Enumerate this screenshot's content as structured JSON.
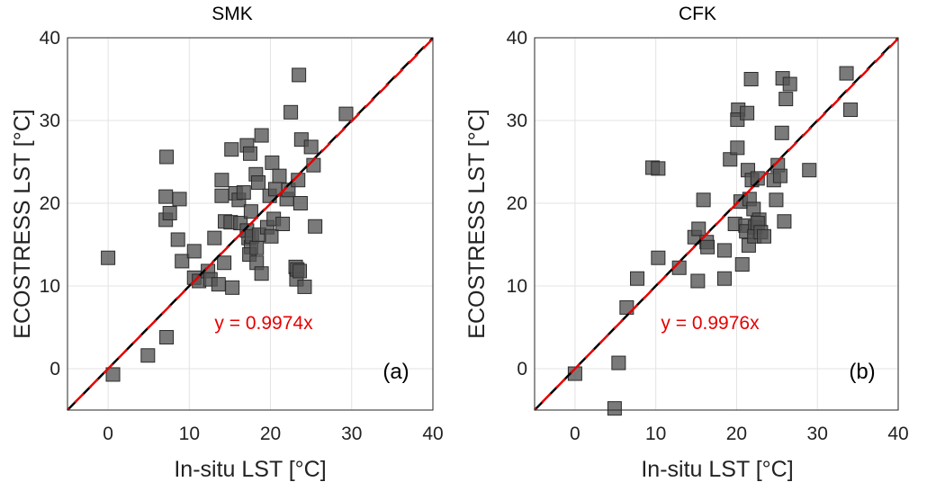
{
  "chart_data": [
    {
      "type": "scatter",
      "title": "SMK",
      "xlabel": "In-situ LST [°C]",
      "ylabel": "ECOSTRESS LST [°C]",
      "xlim": [
        -5,
        40
      ],
      "ylim": [
        -5,
        40
      ],
      "xticks": [
        0,
        10,
        20,
        30,
        40
      ],
      "yticks": [
        0,
        10,
        20,
        30,
        40
      ],
      "grid": true,
      "annotation": "y = 0.9974x",
      "panel_label": "(a)",
      "fit_slope": 0.9974,
      "colors": {
        "marker": "#555555",
        "one_to_one": "#000000",
        "fit": "#e60000"
      },
      "points": [
        [
          0,
          13.4
        ],
        [
          0.6,
          -0.7
        ],
        [
          4.9,
          1.6
        ],
        [
          7.2,
          3.8
        ],
        [
          7.2,
          25.6
        ],
        [
          7.1,
          20.8
        ],
        [
          7.1,
          18.0
        ],
        [
          7.6,
          18.8
        ],
        [
          8.8,
          20.5
        ],
        [
          8.6,
          15.6
        ],
        [
          9.1,
          13.0
        ],
        [
          10.6,
          14.2
        ],
        [
          10.6,
          11.0
        ],
        [
          11.2,
          10.6
        ],
        [
          12.3,
          11.8
        ],
        [
          12.6,
          10.8
        ],
        [
          13.1,
          15.8
        ],
        [
          13.6,
          10.2
        ],
        [
          14.0,
          22.8
        ],
        [
          14.0,
          20.9
        ],
        [
          14.4,
          17.8
        ],
        [
          14.3,
          12.8
        ],
        [
          15.2,
          26.5
        ],
        [
          15.1,
          17.7
        ],
        [
          15.3,
          9.8
        ],
        [
          15.7,
          21.2
        ],
        [
          16.1,
          20.4
        ],
        [
          16.3,
          17.6
        ],
        [
          16.7,
          21.3
        ],
        [
          17.1,
          27.0
        ],
        [
          17.5,
          26.0
        ],
        [
          17.3,
          15.8
        ],
        [
          17.6,
          14.7
        ],
        [
          17.4,
          13.8
        ],
        [
          17.1,
          16.7
        ],
        [
          17.7,
          16.0
        ],
        [
          17.6,
          19.0
        ],
        [
          18.2,
          23.5
        ],
        [
          18.5,
          22.5
        ],
        [
          18.3,
          14.6
        ],
        [
          18.9,
          28.2
        ],
        [
          18.6,
          16.2
        ],
        [
          18.3,
          12.8
        ],
        [
          18.9,
          11.5
        ],
        [
          19.6,
          17.1
        ],
        [
          19.9,
          20.9
        ],
        [
          20.1,
          16.0
        ],
        [
          20.4,
          18.1
        ],
        [
          20.2,
          24.9
        ],
        [
          20.6,
          21.7
        ],
        [
          21.1,
          23.3
        ],
        [
          21.5,
          17.5
        ],
        [
          22.0,
          20.5
        ],
        [
          22.2,
          21.6
        ],
        [
          22.5,
          31.0
        ],
        [
          23.1,
          12.3
        ],
        [
          23.2,
          10.8
        ],
        [
          23.5,
          35.5
        ],
        [
          23.3,
          12.0
        ],
        [
          23.4,
          22.8
        ],
        [
          23.8,
          27.7
        ],
        [
          23.7,
          20.0
        ],
        [
          23.6,
          11.8
        ],
        [
          24.2,
          9.9
        ],
        [
          25.0,
          26.8
        ],
        [
          25.3,
          24.6
        ],
        [
          25.5,
          17.2
        ],
        [
          29.3,
          30.8
        ]
      ]
    },
    {
      "type": "scatter",
      "title": "CFK",
      "xlabel": "In-situ LST [°C]",
      "ylabel": "ECOSTRESS LST [°C]",
      "xlim": [
        -5,
        40
      ],
      "ylim": [
        -5,
        40
      ],
      "xticks": [
        0,
        10,
        20,
        30,
        40
      ],
      "yticks": [
        0,
        10,
        20,
        30,
        40
      ],
      "grid": true,
      "annotation": "y = 0.9976x",
      "panel_label": "(b)",
      "fit_slope": 0.9976,
      "colors": {
        "marker": "#555555",
        "one_to_one": "#000000",
        "fit": "#e60000"
      },
      "points": [
        [
          0,
          -0.6
        ],
        [
          4.9,
          -4.8
        ],
        [
          5.4,
          0.7
        ],
        [
          6.4,
          7.4
        ],
        [
          7.7,
          10.9
        ],
        [
          9.6,
          24.3
        ],
        [
          10.3,
          24.2
        ],
        [
          10.3,
          13.4
        ],
        [
          12.9,
          12.2
        ],
        [
          14.8,
          15.9
        ],
        [
          15.2,
          10.6
        ],
        [
          15.3,
          16.9
        ],
        [
          15.9,
          20.4
        ],
        [
          16.3,
          15.3
        ],
        [
          16.4,
          14.7
        ],
        [
          18.5,
          14.3
        ],
        [
          18.5,
          10.9
        ],
        [
          19.2,
          25.3
        ],
        [
          19.8,
          17.5
        ],
        [
          20.1,
          26.7
        ],
        [
          20.2,
          31.3
        ],
        [
          20.1,
          30.1
        ],
        [
          20.5,
          20.2
        ],
        [
          20.7,
          12.6
        ],
        [
          21.1,
          17.3
        ],
        [
          21.3,
          30.9
        ],
        [
          21.4,
          24.0
        ],
        [
          21.2,
          16.6
        ],
        [
          21.5,
          14.9
        ],
        [
          21.8,
          35.0
        ],
        [
          21.9,
          22.8
        ],
        [
          21.6,
          20.5
        ],
        [
          22.1,
          19.3
        ],
        [
          22.3,
          17.1
        ],
        [
          22.2,
          16.0
        ],
        [
          22.6,
          23.0
        ],
        [
          22.8,
          18.0
        ],
        [
          22.6,
          17.6
        ],
        [
          23.0,
          16.5
        ],
        [
          23.4,
          16.0
        ],
        [
          24.6,
          22.8
        ],
        [
          24.9,
          20.4
        ],
        [
          25.1,
          24.6
        ],
        [
          25.4,
          23.3
        ],
        [
          25.6,
          28.5
        ],
        [
          25.7,
          35.1
        ],
        [
          25.9,
          17.8
        ],
        [
          26.1,
          32.6
        ],
        [
          26.6,
          34.4
        ],
        [
          29.0,
          24.0
        ],
        [
          33.6,
          35.7
        ],
        [
          34.1,
          31.3
        ]
      ]
    }
  ]
}
